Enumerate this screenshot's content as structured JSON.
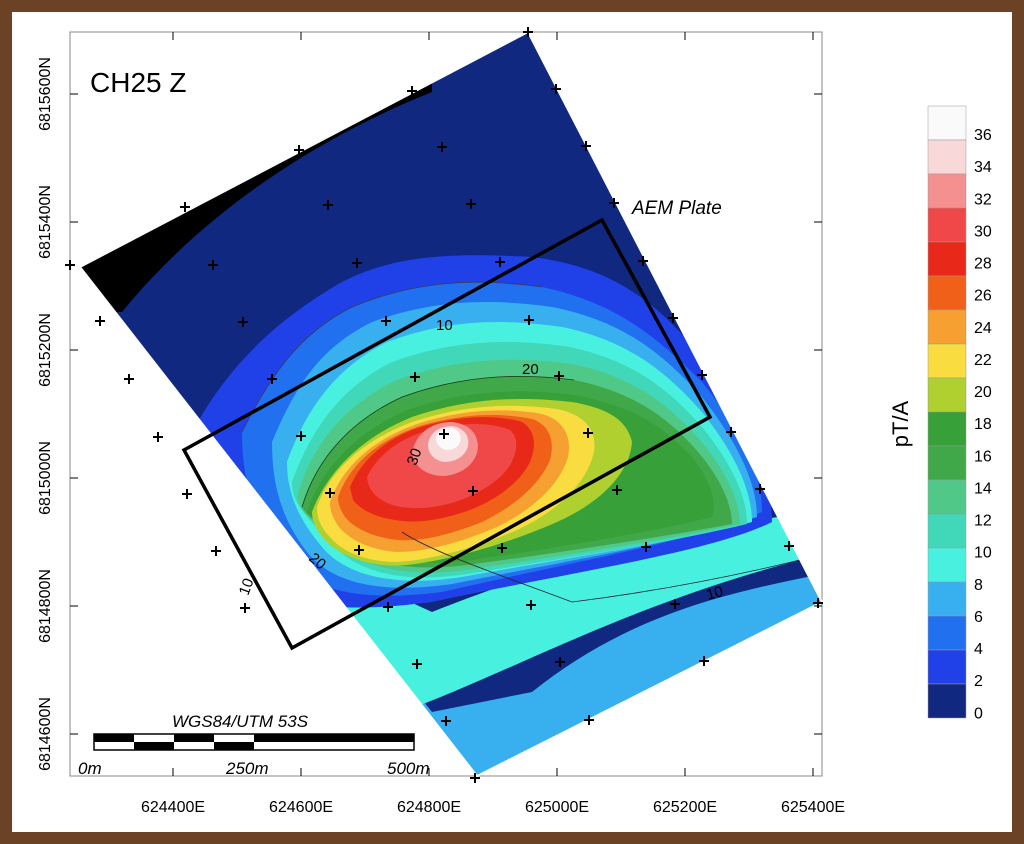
{
  "map": {
    "title": "CH25 Z",
    "plate_label": "AEM Plate",
    "projection": "WGS84/UTM 53S",
    "scale_labels": [
      "0m",
      "250m",
      "500m"
    ],
    "x_ticks": [
      "624400E",
      "624600E",
      "624800E",
      "625000E",
      "625200E",
      "625400E"
    ],
    "y_ticks": [
      "6815600N",
      "6815400N",
      "6815200N",
      "6815000N",
      "6814800N",
      "6814600N"
    ],
    "contour_labels": [
      "10",
      "20",
      "30",
      "20",
      "10",
      "10"
    ]
  },
  "colorbar": {
    "unit": "pT/A",
    "labels": [
      "36",
      "34",
      "32",
      "30",
      "28",
      "26",
      "24",
      "22",
      "20",
      "18",
      "16",
      "14",
      "12",
      "10",
      "8",
      "6",
      "4",
      "2",
      "0"
    ],
    "colors": [
      "#fafafa",
      "#f8d8d8",
      "#f49090",
      "#f04848",
      "#e82818",
      "#f06018",
      "#f5a030",
      "#f8dc40",
      "#b0d030",
      "#38a038",
      "#40a848",
      "#50c888",
      "#40d8b8",
      "#48f0e0",
      "#38b0f0",
      "#2070f0",
      "#2040e8",
      "#102880",
      "#000000"
    ]
  }
}
